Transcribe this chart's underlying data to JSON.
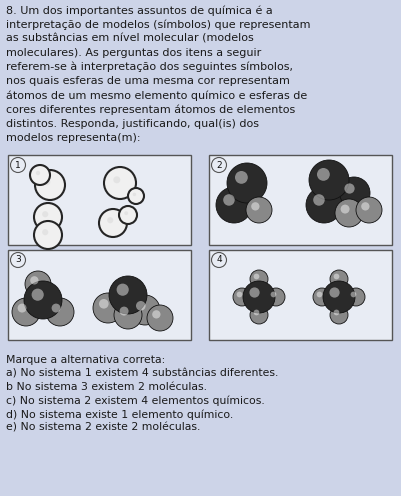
{
  "bg_color": "#cdd4e8",
  "text_color": "#1a1a1a",
  "title_lines": [
    "8. Um dos importantes assuntos de química é a",
    "interpretação de modelos (símbolos) que representam",
    "as substâncias em nível molecular (modelos",
    "moleculares). As perguntas dos itens a seguir",
    "referem-se à interpretação dos seguintes símbolos,",
    "nos quais esferas de uma mesma cor representam",
    "átomos de um mesmo elemento químico e esferas de",
    "cores diferentes representam átomos de elementos",
    "distintos. Responda, justificando, qual(is) dos",
    "modelos representa(m):"
  ],
  "answer_lines": [
    "Marque a alternativa correta:",
    "a) No sistema 1 existem 4 substâncias diferentes.",
    "b No sistema 3 existem 2 moléculas.",
    "c) No sistema 2 existem 4 elementos químicos.",
    "d) No sistema existe 1 elemento químico.",
    "e) No sistema 2 existe 2 moléculas."
  ],
  "box_bg": "#e8ecf4",
  "box_edge": "#555555",
  "outline_sphere_edge": "#252525",
  "outline_sphere_face": "#f0f0f0",
  "dark_sphere": "#2a2a2a",
  "mid_sphere": "#888888",
  "light_sphere": "#cccccc"
}
